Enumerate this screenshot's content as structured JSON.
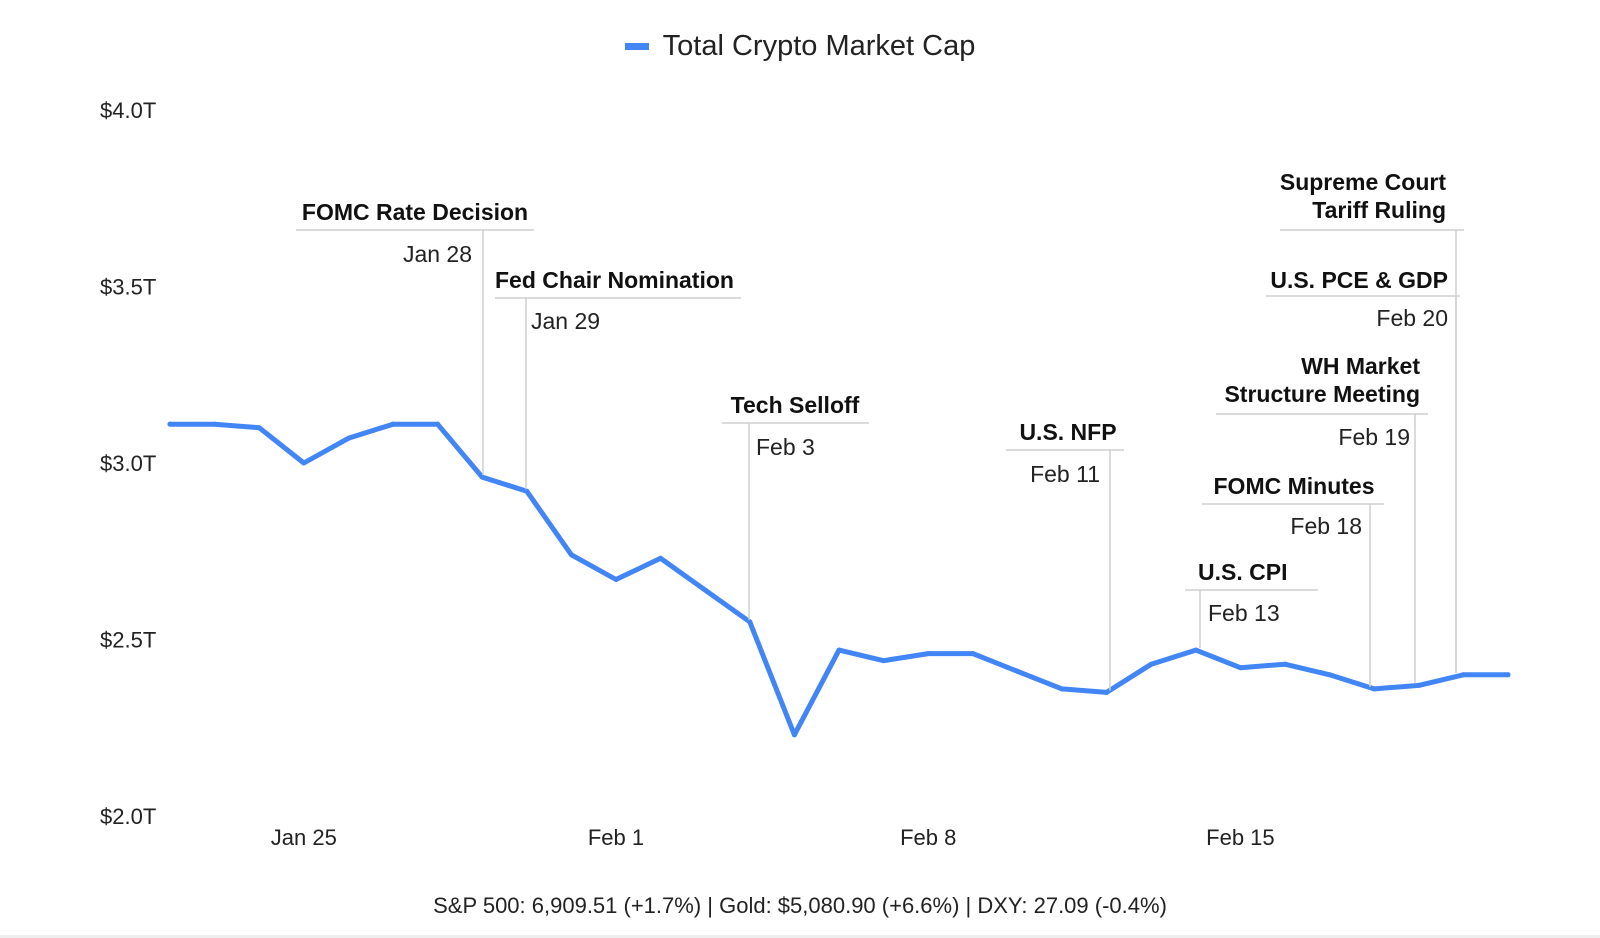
{
  "chart_data": {
    "type": "line",
    "legend": "Total Crypto Market Cap",
    "series_color": "#4285f4",
    "ylim": [
      2.0,
      4.0
    ],
    "yticks": [
      {
        "value": 4.0,
        "label": "$4.0T"
      },
      {
        "value": 3.5,
        "label": "$3.5T"
      },
      {
        "value": 3.0,
        "label": "$3.0T"
      },
      {
        "value": 2.5,
        "label": "$2.5T"
      },
      {
        "value": 2.0,
        "label": "$2.0T"
      }
    ],
    "xticks": [
      {
        "day": 3,
        "label": "Jan 25"
      },
      {
        "day": 10,
        "label": "Feb 1"
      },
      {
        "day": 17,
        "label": "Feb 8"
      },
      {
        "day": 24,
        "label": "Feb 15"
      }
    ],
    "series": [
      {
        "name": "Total Crypto Market Cap",
        "x": [
          0,
          1,
          2,
          3,
          4,
          5,
          6,
          7,
          8,
          9,
          10,
          11,
          12,
          13,
          14,
          15,
          16,
          17,
          18,
          19,
          20,
          21,
          22,
          23,
          24,
          25,
          26,
          27,
          28,
          29,
          30
        ],
        "values": [
          3.11,
          3.11,
          3.1,
          3.0,
          3.07,
          3.11,
          3.11,
          2.96,
          2.92,
          2.74,
          2.67,
          2.73,
          2.64,
          2.55,
          2.23,
          2.47,
          2.44,
          2.46,
          2.46,
          2.41,
          2.36,
          2.35,
          2.43,
          2.47,
          2.42,
          2.43,
          2.4,
          2.36,
          2.37,
          2.4,
          2.4
        ]
      }
    ],
    "annotations": [
      {
        "title": [
          "FOMC Rate Decision"
        ],
        "date": "Jan 28",
        "day": 7
      },
      {
        "title": [
          "Fed Chair Nomination"
        ],
        "date": "Jan 29",
        "day": 8
      },
      {
        "title": [
          "Tech Selloff"
        ],
        "date": "Feb 3",
        "day": 13
      },
      {
        "title": [
          "U.S. NFP"
        ],
        "date": "Feb 11",
        "day": 21
      },
      {
        "title": [
          "U.S. CPI"
        ],
        "date": "Feb 13",
        "day": 23
      },
      {
        "title": [
          "FOMC Minutes"
        ],
        "date": "Feb 18",
        "day": 27
      },
      {
        "title": [
          "WH Market",
          "Structure Meeting"
        ],
        "date": "Feb 19",
        "day": 28
      },
      {
        "title": [
          "U.S. PCE & GDP"
        ],
        "date": "Feb 20",
        "day": 29
      },
      {
        "title": [
          "Supreme Court",
          "Tariff Ruling"
        ],
        "date": "",
        "day": 29
      }
    ]
  },
  "footer": "S&P 500: 6,909.51 (+1.7%) | Gold: $5,080.90 (+6.6%) | DXY: 27.09 (-0.4%)"
}
